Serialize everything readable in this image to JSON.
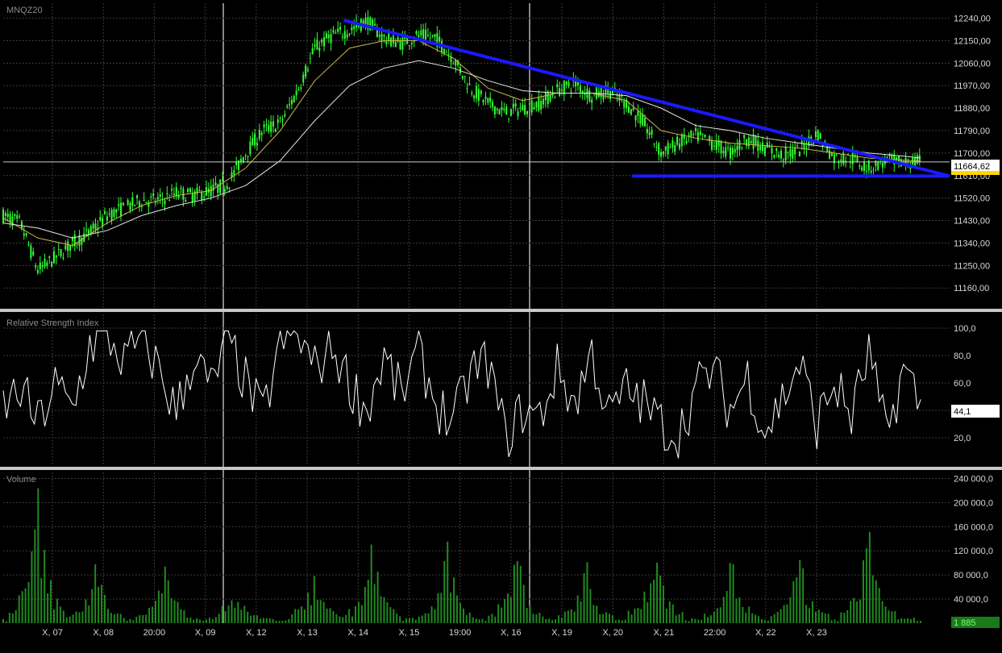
{
  "chart_data": [
    {
      "type": "candlestick",
      "title": "MNQZ20",
      "ylim": [
        11080,
        12300
      ],
      "y_ticks": [
        "12240,00",
        "12150,00",
        "12060,00",
        "11970,00",
        "11880,00",
        "11790,00",
        "11700,00",
        "11610,00",
        "11520,00",
        "11430,00",
        "11340,00",
        "11250,00",
        "11160,00"
      ],
      "y_tick_values": [
        12240,
        12150,
        12060,
        11970,
        11880,
        11790,
        11700,
        11610,
        11520,
        11430,
        11340,
        11250,
        11160
      ],
      "last_price_label": "11664,62",
      "last_price": 11664.62,
      "series": [
        {
          "name": "",
          "style": "close",
          "x": [
            0,
            3,
            6,
            9,
            12,
            15,
            18,
            21,
            24,
            27,
            30,
            33,
            36,
            39,
            42,
            45,
            48,
            51,
            54,
            57,
            60,
            63,
            66,
            69,
            72,
            75,
            78,
            81,
            84,
            87,
            90,
            93,
            96,
            99,
            102,
            105,
            108,
            111,
            114,
            117,
            120,
            123,
            126,
            129,
            132,
            135,
            138,
            141,
            144,
            147,
            150,
            153,
            156,
            159
          ],
          "values": [
            11450,
            11420,
            11230,
            11280,
            11340,
            11380,
            11450,
            11480,
            11510,
            11510,
            11540,
            11530,
            11550,
            11580,
            11700,
            11790,
            11820,
            11950,
            12120,
            12170,
            12190,
            12230,
            12160,
            12140,
            12170,
            12160,
            12080,
            11960,
            11900,
            11860,
            11880,
            11900,
            11950,
            11980,
            11930,
            11950,
            11900,
            11820,
            11700,
            11740,
            11770,
            11740,
            11700,
            11760,
            11720,
            11690,
            11710,
            11780,
            11680,
            11680,
            11640,
            11670,
            11660,
            11665
          ]
        },
        {
          "name": "",
          "style": "ma_fast",
          "x": [
            0,
            6,
            12,
            18,
            24,
            30,
            36,
            42,
            48,
            54,
            60,
            66,
            72,
            78,
            84,
            90,
            96,
            102,
            108,
            114,
            120,
            126,
            132,
            138,
            144,
            150,
            156,
            159
          ],
          "values": [
            11440,
            11360,
            11330,
            11420,
            11490,
            11530,
            11550,
            11640,
            11790,
            11990,
            12120,
            12150,
            12150,
            12080,
            11960,
            11910,
            11940,
            11940,
            11910,
            11790,
            11760,
            11740,
            11730,
            11720,
            11700,
            11680,
            11672,
            11668
          ]
        },
        {
          "name": "",
          "style": "ma_slow",
          "x": [
            0,
            6,
            12,
            18,
            24,
            30,
            36,
            42,
            48,
            54,
            60,
            66,
            72,
            78,
            84,
            90,
            96,
            102,
            108,
            114,
            120,
            126,
            132,
            138,
            144,
            150,
            156,
            159
          ],
          "values": [
            11420,
            11400,
            11360,
            11390,
            11450,
            11490,
            11520,
            11570,
            11670,
            11830,
            11970,
            12040,
            12070,
            12040,
            11990,
            11950,
            11940,
            11940,
            11930,
            11880,
            11810,
            11790,
            11760,
            11740,
            11720,
            11700,
            11688,
            11680
          ]
        }
      ],
      "trendlines": [
        {
          "name": "",
          "x": [
            59,
            164
          ],
          "values": [
            12232,
            11608
          ]
        },
        {
          "name": "",
          "x": [
            109,
            164
          ],
          "values": [
            11608,
            11608
          ]
        }
      ]
    },
    {
      "type": "line",
      "title": "Relative Strength Index",
      "ylim": [
        0,
        110
      ],
      "y_ticks": [
        "100,0",
        "80,0",
        "60,0",
        "40,0",
        "20,0"
      ],
      "y_tick_values": [
        100,
        80,
        60,
        40,
        20
      ],
      "last_value_label": "44,1",
      "series": [
        {
          "name": "",
          "x": [
            0,
            3,
            6,
            9,
            12,
            15,
            18,
            21,
            24,
            27,
            30,
            33,
            36,
            39,
            42,
            45,
            48,
            51,
            54,
            57,
            60,
            63,
            66,
            69,
            72,
            75,
            78,
            81,
            84,
            87,
            90,
            93,
            96,
            99,
            102,
            105,
            108,
            111,
            114,
            117,
            120,
            123,
            126,
            129,
            132,
            135,
            138,
            141,
            144,
            147,
            150,
            153,
            156,
            159
          ],
          "values": [
            42,
            55,
            30,
            58,
            40,
            88,
            95,
            75,
            92,
            70,
            38,
            80,
            55,
            92,
            60,
            35,
            90,
            95,
            70,
            88,
            60,
            40,
            78,
            50,
            82,
            45,
            30,
            68,
            75,
            20,
            40,
            35,
            70,
            45,
            82,
            35,
            55,
            45,
            30,
            22,
            55,
            70,
            40,
            65,
            25,
            48,
            75,
            30,
            60,
            35,
            82,
            20,
            70,
            44
          ]
        }
      ]
    },
    {
      "type": "bar",
      "title": "Volume",
      "ylim": [
        0,
        250000
      ],
      "y_ticks": [
        "240 000,0",
        "200 000,0",
        "160 000,0",
        "120 000,0",
        "80 000,0",
        "40 000,0"
      ],
      "y_tick_values": [
        240000,
        200000,
        160000,
        120000,
        80000,
        40000
      ],
      "last_value_label": "1 885",
      "x_tick_labels": [
        "X, 07",
        "X, 08",
        "20:00",
        "X, 09",
        "X, 12",
        "X, 13",
        "X, 14",
        "X, 15",
        "19:00",
        "X, 16",
        "X, 19",
        "X, 20",
        "X, 21",
        "22:00",
        "X, 22",
        "X, 23"
      ],
      "session_peaks": [
        {
          "x": 6,
          "value": 235000
        },
        {
          "x": 16,
          "value": 105000
        },
        {
          "x": 28,
          "value": 100000
        },
        {
          "x": 40,
          "value": 65000
        },
        {
          "x": 54,
          "value": 100000
        },
        {
          "x": 64,
          "value": 145000
        },
        {
          "x": 77,
          "value": 130000
        },
        {
          "x": 89,
          "value": 140000
        },
        {
          "x": 101,
          "value": 110000
        },
        {
          "x": 113,
          "value": 155000
        },
        {
          "x": 126,
          "value": 125000
        },
        {
          "x": 138,
          "value": 115000
        },
        {
          "x": 150,
          "value": 190000
        }
      ]
    }
  ],
  "colors": {
    "background": "#000000",
    "grid": "#3c3c3c",
    "candle": "#33ff33",
    "ma_fast": "#c8b84a",
    "ma_slow": "#e6e6e6",
    "trendline": "#1a1aff",
    "rsi_line": "#ffffff",
    "volume_bar": "#1f8a1f",
    "separator": "#c8c8c8",
    "badge_price_bg": "#ffffff",
    "badge_volume_bg": "#1a7a1a"
  }
}
